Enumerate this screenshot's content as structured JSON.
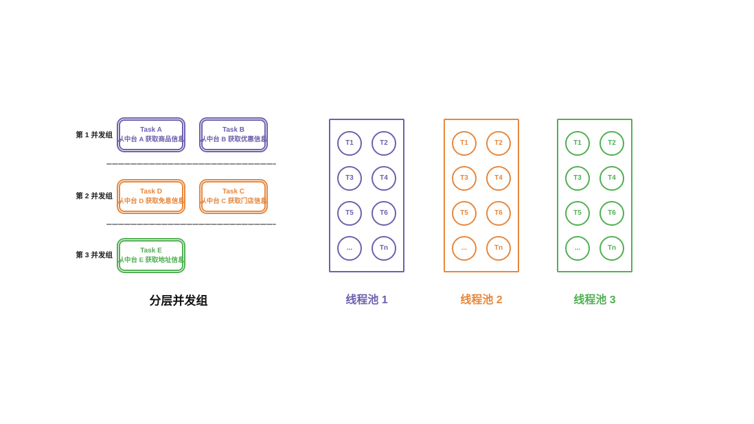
{
  "diagram": {
    "left": {
      "title": "分层并发组",
      "groups": [
        {
          "label": "第 1 并发组",
          "color": "#6b61ad",
          "tasks": [
            {
              "title": "Task A",
              "desc": "从中台 A 获取商品信息"
            },
            {
              "title": "Task B",
              "desc": "从中台 B 获取优惠信息"
            }
          ]
        },
        {
          "label": "第 2 并发组",
          "color": "#e6873d",
          "tasks": [
            {
              "title": "Task D",
              "desc": "从中台 D 获取免息信息"
            },
            {
              "title": "Task C",
              "desc": "从中台 C 获取门店信息"
            }
          ]
        },
        {
          "label": "第 3 并发组",
          "color": "#50af53",
          "tasks": [
            {
              "title": "Task E",
              "desc": "从中台 E 获取地址信息"
            }
          ]
        }
      ],
      "divider_color": "#9a9a9a"
    },
    "pools": [
      {
        "label": "线程池 1",
        "color": "#6b61ad",
        "threads": [
          "T1",
          "T2",
          "T3",
          "T4",
          "T5",
          "T6",
          "...",
          "Tn"
        ]
      },
      {
        "label": "线程池 2",
        "color": "#e6873d",
        "threads": [
          "T1",
          "T2",
          "T3",
          "T4",
          "T5",
          "T6",
          "...",
          "Tn"
        ]
      },
      {
        "label": "线程池 3",
        "color": "#50af53",
        "threads": [
          "T1",
          "T2",
          "T3",
          "T4",
          "T5",
          "T6",
          "...",
          "Tn"
        ]
      }
    ]
  }
}
